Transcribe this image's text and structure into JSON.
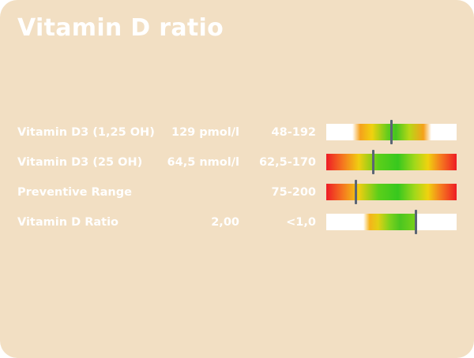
{
  "card": {
    "title": "Vitamin D ratio",
    "background": "#f2dfc3"
  },
  "rows": [
    {
      "name": "Vitamin D3 (1,25 OH)",
      "value": "129 pmol/l",
      "range": "48-192",
      "scale": "reference-window",
      "marker_fraction": 0.5
    },
    {
      "name": "Vitamin D3 (25 OH)",
      "value": "64,5 nmol/l",
      "range": "62,5-170",
      "scale": "full",
      "marker_fraction": 0.36
    },
    {
      "name": "Preventive Range",
      "value": "",
      "range": "75-200",
      "scale": "full",
      "marker_fraction": 0.23
    },
    {
      "name": "Vitamin D Ratio",
      "value": "2,00",
      "range": "<1,0",
      "scale": "lower-window",
      "marker_fraction": 0.69
    }
  ],
  "colors": {
    "text": "#ffffff",
    "marker": "#5a6575",
    "low": "#ee1c25",
    "optimal": "#37c81e",
    "caution": "#f0d20f"
  }
}
